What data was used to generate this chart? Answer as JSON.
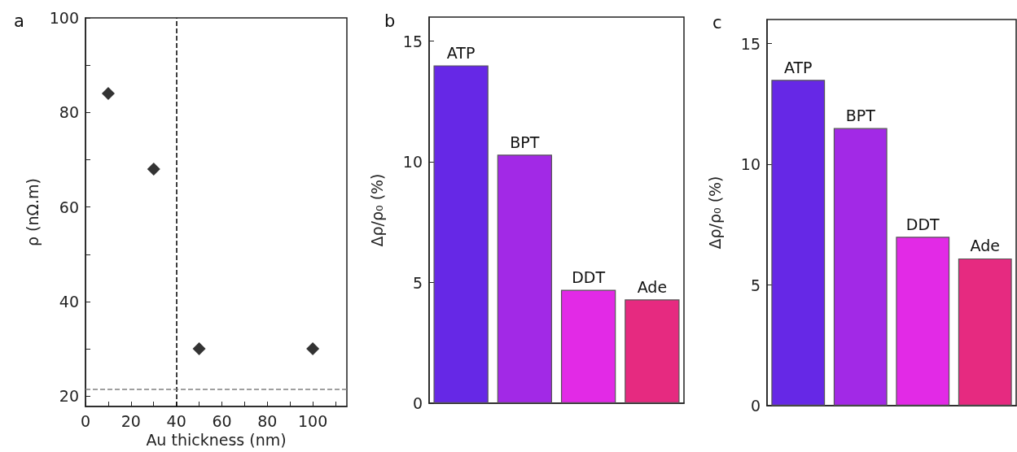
{
  "chart_data": [
    {
      "type": "scatter",
      "title": "a",
      "xlabel": "Au thickness (nm)",
      "ylabel": "ρ (nΩ.m)",
      "x": [
        10,
        30,
        50,
        100
      ],
      "values": [
        84,
        68,
        30,
        30
      ],
      "color": "#000000",
      "marker": "diamond",
      "xlim": [
        0,
        115
      ],
      "xticks": [
        0,
        {
          "value": 10,
          "label": null
        },
        20,
        {
          "value": 30,
          "label": null
        },
        40,
        {
          "value": 50,
          "label": null
        },
        60,
        {
          "value": 70,
          "label": null
        },
        80,
        {
          "value": 90,
          "label": null
        },
        100,
        {
          "value": 110,
          "label": null
        }
      ],
      "ylim": [
        17.8,
        100
      ],
      "yticks": [
        20,
        {
          "value": 30,
          "label": null
        },
        40,
        {
          "value": 50,
          "label": null
        },
        60,
        {
          "value": 70,
          "label": null
        },
        80,
        {
          "value": 90,
          "label": null
        },
        100
      ],
      "grid": false,
      "ref_lines": [
        {
          "axis": "x",
          "value": 40,
          "color": "#000000",
          "line_style": "dashed"
        },
        {
          "axis": "y",
          "value": 21.4,
          "color": "#808080",
          "line_style": "dashed"
        }
      ]
    },
    {
      "type": "bar",
      "title": "b",
      "ylabel": "Δρ/ρ₀ (%)",
      "categories": [
        "ATP",
        "BPT",
        "DDT",
        "Ade"
      ],
      "values": [
        14.0,
        10.3,
        4.7,
        4.3
      ],
      "colors": [
        "#6628e6",
        "#a229e6",
        "#e22ae6",
        "#e62a80"
      ],
      "ylim": [
        0,
        16
      ],
      "yticks": [
        0,
        5,
        10,
        15
      ],
      "grid": false,
      "tick_labels": "y"
    },
    {
      "type": "bar",
      "title": "c",
      "ylabel": "Δρ/ρ₀ (%)",
      "categories": [
        "ATP",
        "BPT",
        "DDT",
        "Ade"
      ],
      "values": [
        13.5,
        11.5,
        7.0,
        6.1
      ],
      "colors": [
        "#6628e6",
        "#a229e6",
        "#e22ae6",
        "#e62a80"
      ],
      "ylim": [
        0,
        16
      ],
      "yticks": [
        0,
        5,
        10,
        15
      ],
      "grid": false,
      "tick_labels": "y"
    }
  ]
}
